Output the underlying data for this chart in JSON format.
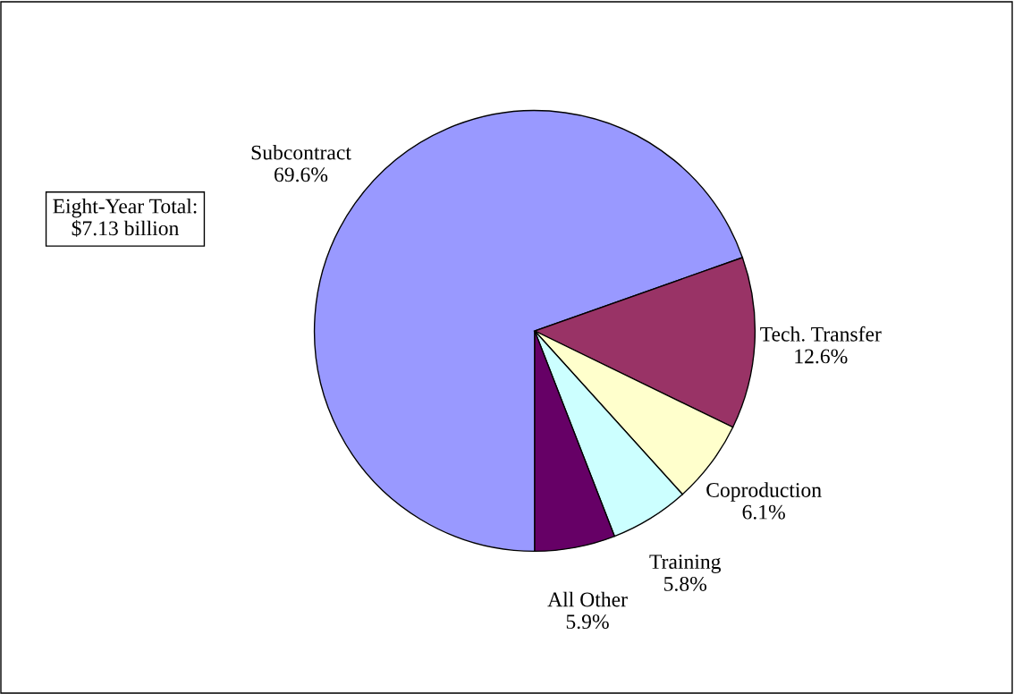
{
  "chart_data": {
    "type": "pie",
    "categories": [
      "Subcontract",
      "Tech. Transfer",
      "Coproduction",
      "Training",
      "All Other"
    ],
    "values": [
      69.6,
      12.6,
      6.1,
      5.8,
      5.9
    ],
    "value_labels": [
      "69.6%",
      "12.6%",
      "6.1%",
      "5.8%",
      "5.9%"
    ],
    "colors": [
      "#9999ff",
      "#993366",
      "#ffffcc",
      "#ccffff",
      "#660066"
    ],
    "annotations": [
      "Eight-Year Total:\n$7.13 billion"
    ],
    "legend": false
  }
}
